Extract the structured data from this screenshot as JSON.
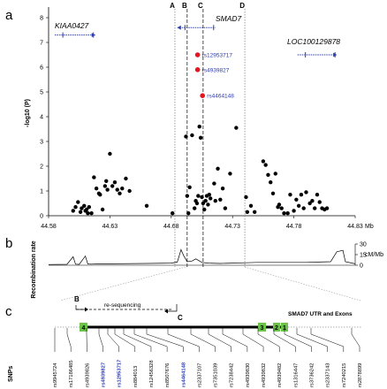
{
  "panels": {
    "a": "a",
    "b": "b",
    "c": "c"
  },
  "genes": {
    "kiaa0427": "KIAA0427",
    "smad7": "SMAD7",
    "loc100129878": "LOC100129878"
  },
  "vertical_lines": {
    "A": "A",
    "B": "B",
    "C": "C",
    "D": "D"
  },
  "colors": {
    "significant": "#e8141c",
    "points": "#000000",
    "snp_label_blue": "#2b3bb0",
    "exon_green": "#6cc24a",
    "gene_blue": "#2b3bb0"
  },
  "chart_data": [
    {
      "type": "scatter",
      "ylabel": "-log10 (P)",
      "xlabel": "Mb",
      "xlim": [
        44.58,
        44.83
      ],
      "ylim": [
        0,
        8
      ],
      "x_ticks": [
        "44.58",
        "44.63",
        "44.68",
        "44.73",
        "44.78",
        "44.83"
      ],
      "y_ticks": [
        "0",
        "1",
        "2",
        "3",
        "4",
        "5",
        "6",
        "7",
        "8"
      ],
      "annotations": [
        {
          "label": "rs12953717",
          "x": 44.7015,
          "y": 6.5
        },
        {
          "label": "rs4939827",
          "x": 44.7015,
          "y": 5.9
        },
        {
          "label": "rs4464148",
          "x": 44.7055,
          "y": 4.85
        }
      ],
      "highlighted_points": [
        {
          "x": 44.7015,
          "y": 6.5
        },
        {
          "x": 44.7015,
          "y": 5.9
        },
        {
          "x": 44.7055,
          "y": 4.85
        }
      ],
      "points": [
        [
          44.6,
          0.2
        ],
        [
          44.602,
          0.35
        ],
        [
          44.604,
          0.55
        ],
        [
          44.606,
          0.15
        ],
        [
          44.607,
          0.3
        ],
        [
          44.609,
          0.4
        ],
        [
          44.61,
          0.2
        ],
        [
          44.611,
          0.25
        ],
        [
          44.612,
          0.1
        ],
        [
          44.613,
          0.35
        ],
        [
          44.615,
          0.1
        ],
        [
          44.617,
          1.55
        ],
        [
          44.619,
          1.1
        ],
        [
          44.621,
          0.9
        ],
        [
          44.622,
          0.85
        ],
        [
          44.624,
          0.25
        ],
        [
          44.626,
          1.2
        ],
        [
          44.627,
          1.4
        ],
        [
          44.628,
          1.05
        ],
        [
          44.63,
          2.5
        ],
        [
          44.632,
          1.2
        ],
        [
          44.634,
          1.35
        ],
        [
          44.636,
          1.05
        ],
        [
          44.638,
          0.9
        ],
        [
          44.64,
          1.1
        ],
        [
          44.643,
          1.5
        ],
        [
          44.646,
          1.0
        ],
        [
          44.66,
          0.4
        ],
        [
          44.681,
          0.1
        ],
        [
          44.692,
          3.2
        ],
        [
          44.693,
          0.8
        ],
        [
          44.694,
          0.1
        ],
        [
          44.695,
          1.15
        ],
        [
          44.697,
          3.25
        ],
        [
          44.699,
          0.3
        ],
        [
          44.7,
          0.6
        ],
        [
          44.701,
          0.5
        ],
        [
          44.702,
          0.8
        ],
        [
          44.703,
          3.6
        ],
        [
          44.704,
          3.15
        ],
        [
          44.705,
          0.75
        ],
        [
          44.706,
          0.5
        ],
        [
          44.707,
          0.25
        ],
        [
          44.708,
          0.6
        ],
        [
          44.709,
          0.8
        ],
        [
          44.71,
          0.45
        ],
        [
          44.711,
          0.85
        ],
        [
          44.712,
          0.7
        ],
        [
          44.715,
          1.3
        ],
        [
          44.716,
          0.6
        ],
        [
          44.718,
          1.9
        ],
        [
          44.72,
          0.65
        ],
        [
          44.722,
          1.1
        ],
        [
          44.724,
          0.3
        ],
        [
          44.728,
          1.7
        ],
        [
          44.733,
          3.55
        ],
        [
          44.741,
          0.75
        ],
        [
          44.742,
          0.15
        ],
        [
          44.745,
          0.4
        ],
        [
          44.748,
          0.15
        ],
        [
          44.755,
          2.2
        ],
        [
          44.757,
          2.05
        ],
        [
          44.759,
          1.65
        ],
        [
          44.761,
          1.35
        ],
        [
          44.763,
          0.9
        ],
        [
          44.765,
          1.7
        ],
        [
          44.767,
          0.35
        ],
        [
          44.768,
          0.45
        ],
        [
          44.77,
          0.3
        ],
        [
          44.772,
          0.1
        ],
        [
          44.775,
          0.1
        ],
        [
          44.777,
          0.85
        ],
        [
          44.78,
          0.2
        ],
        [
          44.782,
          0.65
        ],
        [
          44.784,
          0.4
        ],
        [
          44.786,
          0.85
        ],
        [
          44.788,
          0.3
        ],
        [
          44.79,
          0.95
        ],
        [
          44.793,
          0.5
        ],
        [
          44.795,
          0.6
        ],
        [
          44.797,
          0.3
        ],
        [
          44.799,
          0.85
        ],
        [
          44.801,
          0.55
        ],
        [
          44.803,
          0.3
        ],
        [
          44.805,
          0.25
        ],
        [
          44.807,
          0.3
        ]
      ],
      "gene_tracks": [
        {
          "name": "KIAA0427",
          "start": 44.585,
          "end": 44.618,
          "y": 7.3,
          "direction": "right"
        },
        {
          "name": "SMAD7",
          "start": 44.685,
          "end": 44.716,
          "y": 7.6,
          "direction": "left"
        },
        {
          "name": "LOC100129878",
          "start": 44.783,
          "end": 44.815,
          "y": 6.5,
          "direction": "right"
        }
      ],
      "vertical_lines_mb": {
        "A": 44.683,
        "B": 44.693,
        "C": 44.706,
        "D": 44.74
      }
    },
    {
      "type": "line",
      "ylabel": "Recombination rate",
      "y2label": "cM/Mb",
      "y_ticks": [
        "30",
        "15",
        "0"
      ],
      "ylim": [
        0,
        30
      ],
      "x": [
        44.58,
        44.595,
        44.6,
        44.602,
        44.605,
        44.61,
        44.612,
        44.615,
        44.62,
        44.63,
        44.66,
        44.68,
        44.685,
        44.688,
        44.69,
        44.693,
        44.697,
        44.7,
        44.705,
        44.71,
        44.72,
        44.73,
        44.74,
        44.75,
        44.76,
        44.77,
        44.78,
        44.79,
        44.8,
        44.81,
        44.815,
        44.82,
        44.822,
        44.83
      ],
      "values": [
        1,
        1.2,
        12,
        1.5,
        1.2,
        13,
        1.8,
        1.5,
        2,
        2,
        2.5,
        3,
        4.5,
        22,
        14,
        5,
        6,
        9,
        4,
        3,
        2.5,
        3,
        3.5,
        4,
        4,
        4,
        4,
        4,
        4.5,
        5,
        19,
        21,
        5,
        2
      ]
    }
  ],
  "panel_c": {
    "resequencing_label": "re-sequencing",
    "arrow_start": "B",
    "arrow_end": "C",
    "title": "SMAD7 UTR and Exons",
    "exons": [
      "4",
      "3",
      "2",
      "1"
    ],
    "snps_label": "SNPs",
    "snps": [
      {
        "id": "rs9945724",
        "highlight": false
      },
      {
        "id": "rs17186485",
        "highlight": false
      },
      {
        "id": "rs4939826",
        "highlight": false
      },
      {
        "id": "rs4939827",
        "highlight": true
      },
      {
        "id": "rs12953717",
        "highlight": true
      },
      {
        "id": "rs884013",
        "highlight": false
      },
      {
        "id": "rs12456328",
        "highlight": false
      },
      {
        "id": "rs8507676",
        "highlight": false
      },
      {
        "id": "rs4464148",
        "highlight": true
      },
      {
        "id": "rs2337107",
        "highlight": false
      },
      {
        "id": "rs7351039",
        "highlight": false
      },
      {
        "id": "rs7238442",
        "highlight": false
      },
      {
        "id": "rs4939830",
        "highlight": false
      },
      {
        "id": "rs4939832",
        "highlight": false
      },
      {
        "id": "rs4939482",
        "highlight": false
      },
      {
        "id": "rs1316447",
        "highlight": false
      },
      {
        "id": "rs3736242",
        "highlight": false
      },
      {
        "id": "rs2337143",
        "highlight": false
      },
      {
        "id": "rs7240215",
        "highlight": false
      },
      {
        "id": "rs2878899",
        "highlight": false
      }
    ]
  }
}
